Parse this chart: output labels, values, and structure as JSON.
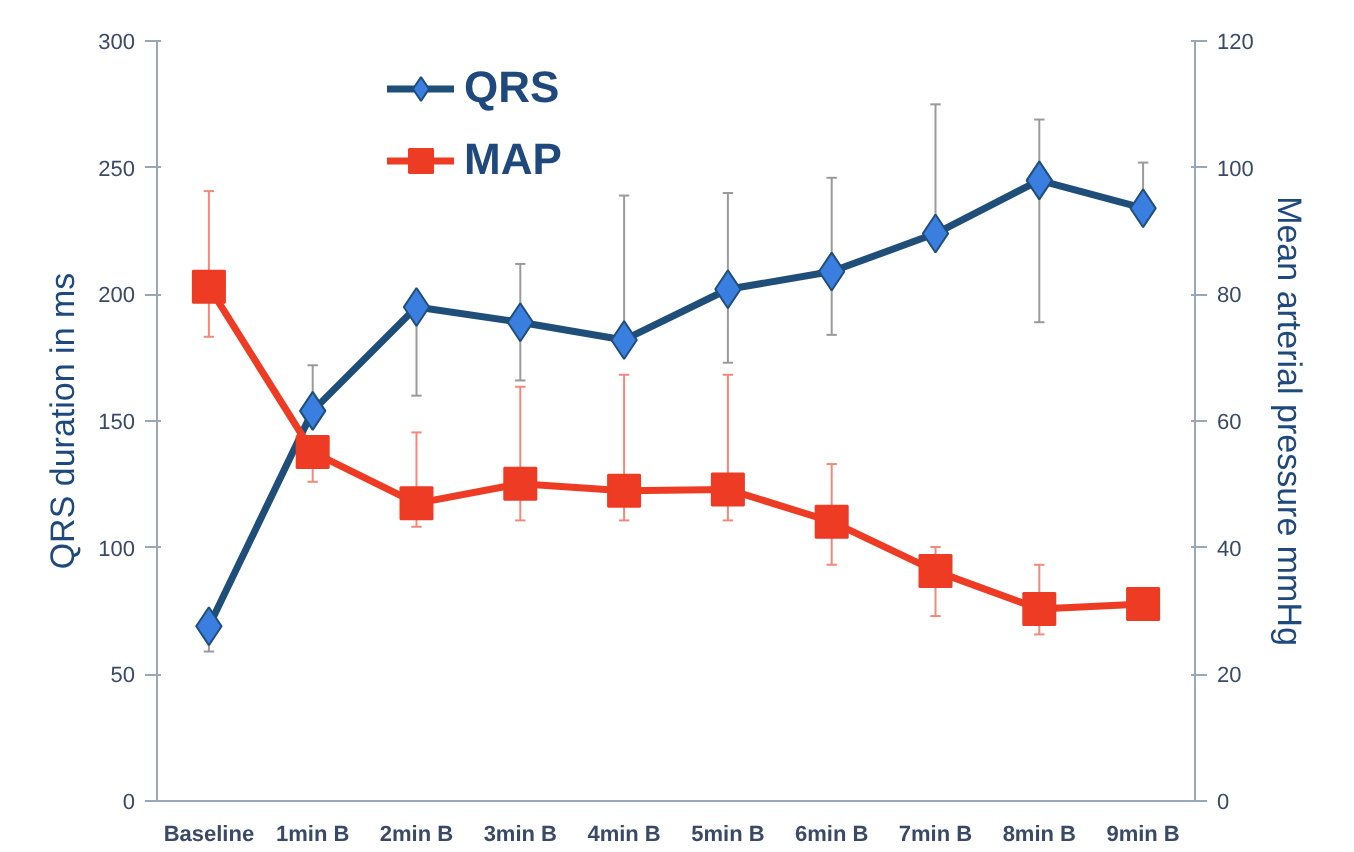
{
  "chart_data": {
    "type": "line",
    "ylabel": "QRS duration in ms",
    "y2label": "Mean arterial pressure mmHg",
    "categories": [
      "Baseline",
      "1min B",
      "2min B",
      "3min B",
      "4min B",
      "5min B",
      "6min B",
      "7min B",
      "8min B",
      "9min B"
    ],
    "series": [
      {
        "name": "QRS",
        "color": "#1f4e79",
        "marker": "diamond",
        "values": [
          69,
          154,
          195,
          189,
          182,
          202,
          209,
          224,
          245,
          234
        ],
        "errors": [
          [
            59,
            69
          ],
          [
            154,
            172
          ],
          [
            160,
            195
          ],
          [
            166,
            212
          ],
          [
            182,
            239
          ],
          [
            173,
            240
          ],
          [
            184,
            246
          ],
          [
            224,
            275
          ],
          [
            189,
            269
          ],
          [
            234,
            252
          ]
        ]
      },
      {
        "name": "MAP",
        "color": "#ee3b24",
        "marker": "square",
        "axis": "y2",
        "values": [
          81.2,
          55.1,
          47,
          50.1,
          49,
          49.2,
          44.1,
          36.3,
          30.3,
          31.1
        ],
        "errors": [
          [
            73.3,
            96.3
          ],
          [
            50.4,
            55.1
          ],
          [
            43.3,
            58.2
          ],
          [
            44.3,
            65.4
          ],
          [
            44.3,
            67.3
          ],
          [
            44.3,
            67.3
          ],
          [
            37.3,
            53.2
          ],
          [
            29.2,
            40.1
          ],
          [
            26.3,
            37.3
          ],
          null
        ]
      }
    ],
    "ylim": [
      0,
      300
    ],
    "yticks": [
      0,
      50,
      100,
      150,
      200,
      250,
      300
    ],
    "y2lim": [
      0,
      120
    ],
    "y2ticks": [
      0,
      20,
      40,
      60,
      80,
      100,
      120
    ],
    "grid": false,
    "legend": "top left",
    "line_style": "solid"
  }
}
